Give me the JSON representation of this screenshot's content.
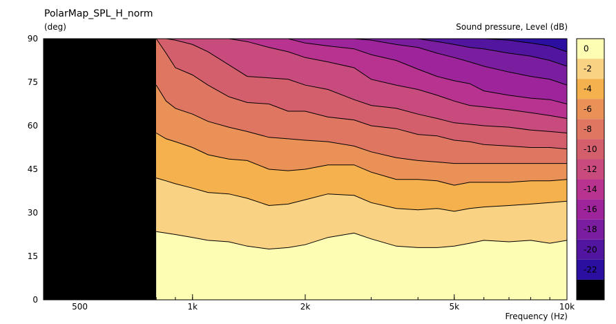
{
  "chart_data": {
    "type": "heatmap",
    "title": "PolarMap_SPL_H_norm",
    "ylabel": "(deg)",
    "xlabel": "Frequency  (Hz)",
    "colorbar_label": "Sound pressure, Level  (dB)",
    "x_scale": "log",
    "xlim": [
      400,
      10000
    ],
    "ylim": [
      0,
      90
    ],
    "x_ticks": [
      {
        "value": 500,
        "label": "500"
      },
      {
        "value": 1000,
        "label": "1k"
      },
      {
        "value": 2000,
        "label": "2k"
      },
      {
        "value": 5000,
        "label": "5k"
      },
      {
        "value": 10000,
        "label": "10k"
      }
    ],
    "y_ticks": [
      0,
      15,
      30,
      45,
      60,
      75,
      90
    ],
    "data_start_hz": 800,
    "no_data_color": "#000000",
    "levels": [
      0,
      -2,
      -4,
      -6,
      -8,
      -10,
      -12,
      -14,
      -16,
      -18,
      -20,
      -22,
      -24
    ],
    "level_colors": [
      "#fdfdb4",
      "#fad283",
      "#f4b14d",
      "#e99156",
      "#df7662",
      "#d45f6c",
      "#c84b7d",
      "#b7338f",
      "#9d249a",
      "#7a1d9f",
      "#52159f",
      "#2a0fa0",
      "#000000"
    ],
    "contour_x_hz": [
      800,
      850,
      900,
      1000,
      1100,
      1250,
      1400,
      1600,
      1800,
      2000,
      2300,
      2700,
      3000,
      3500,
      4000,
      4500,
      5000,
      5500,
      6000,
      7000,
      8000,
      9000,
      10000
    ],
    "contours": [
      {
        "level": -2,
        "angles": [
          23.5,
          23.0,
          22.5,
          21.5,
          20.5,
          20.0,
          18.5,
          17.5,
          18.0,
          19.0,
          21.5,
          23.0,
          21.0,
          18.5,
          18.0,
          18.0,
          18.5,
          19.5,
          20.5,
          20.0,
          20.5,
          19.5,
          20.5
        ]
      },
      {
        "level": -4,
        "angles": [
          42.0,
          41.0,
          40.0,
          38.5,
          37.0,
          36.5,
          35.0,
          32.5,
          33.0,
          34.5,
          36.5,
          36.0,
          33.5,
          31.5,
          31.0,
          31.5,
          30.5,
          31.5,
          32.0,
          32.5,
          33.0,
          33.5,
          34.0
        ]
      },
      {
        "level": -6,
        "angles": [
          57.5,
          55.5,
          54.5,
          52.5,
          50.0,
          48.5,
          48.0,
          45.0,
          44.5,
          45.0,
          46.5,
          46.5,
          44.0,
          41.5,
          41.5,
          41.0,
          39.5,
          40.5,
          40.5,
          40.5,
          41.0,
          41.0,
          41.5
        ]
      },
      {
        "level": -8,
        "angles": [
          74.0,
          68.5,
          66.0,
          64.0,
          61.5,
          59.5,
          58.0,
          56.0,
          55.5,
          55.0,
          54.5,
          53.0,
          51.0,
          49.0,
          48.0,
          47.5,
          47.0,
          47.0,
          47.0,
          47.0,
          47.0,
          47.0,
          47.0
        ]
      },
      {
        "level": -10,
        "angles": [
          90.0,
          85.0,
          80.0,
          77.5,
          74.0,
          70.0,
          68.0,
          67.5,
          65.0,
          65.0,
          63.0,
          62.0,
          60.0,
          59.0,
          57.0,
          56.5,
          55.0,
          54.5,
          53.5,
          53.0,
          52.5,
          52.5,
          52.0
        ]
      },
      {
        "level": -12,
        "angles": [
          null,
          90.0,
          89.5,
          88.0,
          85.5,
          81.0,
          77.0,
          76.5,
          76.0,
          74.0,
          72.5,
          69.0,
          67.0,
          66.0,
          64.0,
          62.5,
          61.0,
          60.5,
          60.0,
          59.5,
          58.5,
          58.0,
          57.5
        ]
      },
      {
        "level": -14,
        "angles": [
          null,
          null,
          null,
          null,
          null,
          90.0,
          89.0,
          87.0,
          85.5,
          83.5,
          82.0,
          80.0,
          76.0,
          74.0,
          72.5,
          70.5,
          68.5,
          67.0,
          66.5,
          65.5,
          64.5,
          63.5,
          62.5
        ]
      },
      {
        "level": -16,
        "angles": [
          null,
          null,
          null,
          null,
          null,
          null,
          null,
          null,
          90.0,
          88.5,
          87.5,
          86.5,
          84.5,
          82.5,
          79.5,
          77.0,
          75.5,
          74.5,
          72.0,
          70.5,
          69.5,
          69.0,
          67.5
        ]
      },
      {
        "level": -18,
        "angles": [
          null,
          null,
          null,
          null,
          null,
          null,
          null,
          null,
          null,
          null,
          90.0,
          90.0,
          89.5,
          88.0,
          87.0,
          85.0,
          83.5,
          82.0,
          80.5,
          78.5,
          77.0,
          76.0,
          74.0
        ]
      },
      {
        "level": -20,
        "angles": [
          null,
          null,
          null,
          null,
          null,
          null,
          null,
          null,
          null,
          null,
          null,
          null,
          null,
          null,
          90.0,
          89.0,
          88.0,
          87.0,
          86.5,
          85.0,
          84.0,
          82.5,
          80.5
        ]
      },
      {
        "level": -22,
        "angles": [
          null,
          null,
          null,
          null,
          null,
          null,
          null,
          null,
          null,
          null,
          null,
          null,
          null,
          null,
          null,
          null,
          null,
          null,
          90.0,
          89.5,
          88.5,
          87.5,
          85.5
        ]
      }
    ]
  }
}
